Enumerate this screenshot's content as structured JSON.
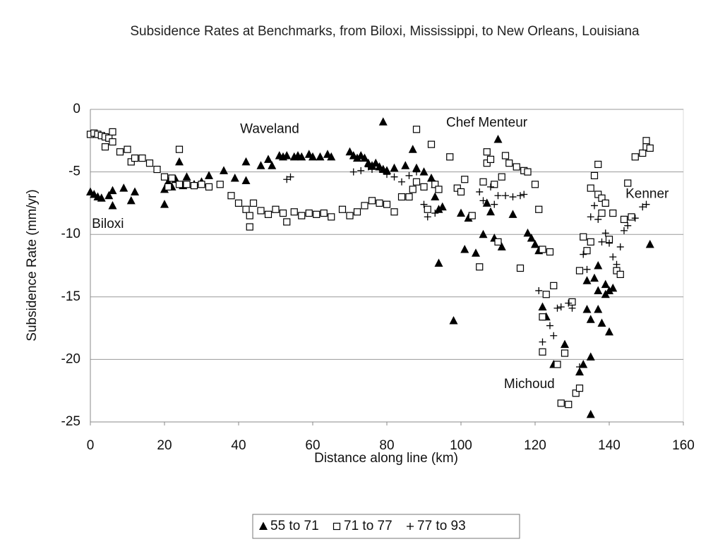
{
  "chart_data": {
    "type": "scatter",
    "title": "Subsidence Rates at Benchmarks, from Biloxi, Mississippi, to New Orleans, Louisiana",
    "x_label": "Distance along line (km)",
    "y_label": "Subsidence Rate (mm/yr)",
    "xlim": [
      0,
      160
    ],
    "ylim": [
      -25,
      0
    ],
    "xticks": [
      0,
      20,
      40,
      60,
      80,
      100,
      120,
      140,
      160
    ],
    "yticks": [
      0,
      -5,
      -10,
      -15,
      -20,
      -25
    ],
    "grid": true,
    "legend": "bottom",
    "annotations": [
      {
        "text": "Waveland",
        "x": 40.4,
        "y": -1.6
      },
      {
        "text": "Chef Menteur",
        "x": 96,
        "y": -1.1
      },
      {
        "text": "Kenner",
        "x": 144.4,
        "y": -6.8
      },
      {
        "text": "Biloxi",
        "x": 0.4,
        "y": -9.2
      },
      {
        "text": "Michoud",
        "x": 111.6,
        "y": -22
      }
    ],
    "series": [
      {
        "name": "55 to 71",
        "color": "#000000",
        "marker": "triangle",
        "x": [
          0,
          1,
          2,
          3,
          5,
          6,
          6,
          9,
          11,
          12,
          20,
          20,
          21,
          22,
          23,
          24,
          25,
          26,
          28,
          30,
          32,
          36,
          39,
          42,
          42,
          46,
          48,
          49,
          51,
          52,
          53,
          55,
          56,
          57,
          59,
          60,
          62,
          64,
          65,
          70,
          71,
          72,
          73,
          74,
          75,
          76,
          77,
          78,
          79,
          79,
          80,
          82,
          85,
          87,
          88,
          90,
          92,
          93,
          93,
          94,
          94,
          95,
          98,
          100,
          101,
          102,
          104,
          106,
          107,
          108,
          109,
          110,
          111,
          114,
          118,
          119,
          120,
          121,
          122,
          123,
          125,
          128,
          132,
          133,
          134,
          134,
          135,
          135,
          135,
          136,
          137,
          137,
          137,
          138,
          139,
          139,
          140,
          140,
          141,
          151
        ],
        "values": [
          -6.6,
          -6.8,
          -7,
          -7.1,
          -6.9,
          -6.5,
          -7.7,
          -6.3,
          -7.3,
          -6.6,
          -6.4,
          -7.6,
          -5.8,
          -6.2,
          -5.6,
          -4.2,
          -6.1,
          -5.4,
          -6,
          -5.8,
          -5.3,
          -4.9,
          -5.5,
          -4.2,
          -5.7,
          -4.5,
          -4,
          -4.5,
          -3.7,
          -3.8,
          -3.7,
          -3.8,
          -3.7,
          -3.8,
          -3.6,
          -3.8,
          -3.8,
          -3.6,
          -3.8,
          -3.4,
          -3.7,
          -3.9,
          -3.7,
          -3.9,
          -4.3,
          -4.5,
          -4.3,
          -4.6,
          -1,
          -4.8,
          -4.9,
          -4.7,
          -4.5,
          -3.2,
          -4.7,
          -5,
          -5.5,
          -6,
          -7,
          -8,
          -12.3,
          -7.8,
          -16.9,
          -8.3,
          -11.2,
          -8.7,
          -11.5,
          -10,
          -7.5,
          -8.2,
          -10.3,
          -2.4,
          -11,
          -8.4,
          -9.9,
          -10.3,
          -10.8,
          -11.3,
          -15.8,
          -16.6,
          -20.4,
          -18.8,
          -21,
          -20.4,
          -13.7,
          -16,
          -24.4,
          -19.8,
          -16.8,
          -13.5,
          -16,
          -12.5,
          -14.5,
          -17.1,
          -14.8,
          -14,
          -14.5,
          -17.8,
          -14.3,
          -10.8
        ]
      },
      {
        "name": "71 to 77",
        "color": "#000000",
        "marker": "square",
        "x": [
          0,
          1,
          2,
          3,
          4,
          4,
          5,
          6,
          6,
          8,
          10,
          11,
          12,
          14,
          16,
          18,
          20,
          21,
          22,
          24,
          24,
          26,
          28,
          30,
          32,
          35,
          38,
          40,
          42,
          43,
          43,
          44,
          46,
          48,
          50,
          52,
          53,
          55,
          57,
          59,
          61,
          63,
          65,
          68,
          70,
          72,
          74,
          76,
          78,
          80,
          82,
          84,
          86,
          87,
          88,
          88,
          90,
          91,
          92,
          93,
          94,
          97,
          99,
          100,
          101,
          103,
          105,
          106,
          107,
          107,
          108,
          109,
          110,
          111,
          112,
          113,
          115,
          116,
          117,
          118,
          120,
          121,
          122,
          122,
          122,
          123,
          124,
          125,
          126,
          127,
          128,
          129,
          130,
          131,
          132,
          132,
          133,
          134,
          135,
          135,
          136,
          137,
          137,
          138,
          138,
          139,
          140,
          141,
          142,
          143,
          144,
          145,
          146,
          147,
          149,
          150,
          150,
          151
        ],
        "values": [
          -2,
          -1.9,
          -2,
          -2.1,
          -2.2,
          -3,
          -2.3,
          -1.8,
          -2.6,
          -3.4,
          -3.2,
          -4.2,
          -3.9,
          -3.9,
          -4.3,
          -4.8,
          -5.4,
          -6.2,
          -5.5,
          -3.2,
          -6,
          -6,
          -6.1,
          -6,
          -6.2,
          -6,
          -6.9,
          -7.5,
          -8,
          -8.5,
          -9.4,
          -7.5,
          -8.1,
          -8.4,
          -8,
          -8.3,
          -9,
          -8.2,
          -8.5,
          -8.3,
          -8.4,
          -8.3,
          -8.6,
          -8,
          -8.5,
          -8.2,
          -7.7,
          -7.3,
          -7.5,
          -7.6,
          -8.2,
          -7,
          -7,
          -6.4,
          -1.6,
          -5.8,
          -6.2,
          -8,
          -2.8,
          -6,
          -6.4,
          -3.8,
          -6.3,
          -6.6,
          -5.6,
          -8.5,
          -12.6,
          -5.8,
          -3.4,
          -4.3,
          -4,
          -6,
          -10.6,
          -5.4,
          -3.7,
          -4.3,
          -4.6,
          -12.7,
          -4.9,
          -5,
          -6,
          -8,
          -11.2,
          -16.6,
          -19.4,
          -14.8,
          -11.4,
          -14.1,
          -20.4,
          -23.5,
          -19.5,
          -23.6,
          -15.4,
          -22.7,
          -22.3,
          -12.9,
          -10.2,
          -11.3,
          -6.3,
          -10.6,
          -5.3,
          -4.4,
          -6.8,
          -7.1,
          -8.3,
          -7.5,
          -10.4,
          -8.3,
          -12.9,
          -13.2,
          -8.8,
          -5.9,
          -8.6,
          -3.8,
          -3.5,
          -2.5,
          -3,
          -3.1
        ]
      },
      {
        "name": "77 to 93",
        "color": "#000000",
        "marker": "plus",
        "x": [
          53,
          54,
          71,
          73,
          75,
          76,
          78,
          80,
          82,
          84,
          86,
          88,
          90,
          91,
          93,
          105,
          106,
          108,
          109,
          110,
          112,
          114,
          116,
          117,
          121,
          122,
          124,
          125,
          126,
          127,
          129,
          130,
          132,
          133,
          134,
          135,
          136,
          137,
          138,
          139,
          140,
          141,
          142,
          143,
          144,
          145,
          147,
          149,
          150
        ],
        "values": [
          -5.6,
          -5.4,
          -5,
          -4.9,
          -4.6,
          -4.8,
          -4.7,
          -5.2,
          -5.4,
          -5.8,
          -5.3,
          -5,
          -7.6,
          -8.6,
          -8.3,
          -6.6,
          -7.3,
          -6.2,
          -7.6,
          -6.9,
          -6.9,
          -7,
          -6.9,
          -6.8,
          -14.5,
          -18.6,
          -17.3,
          -18.1,
          -15.9,
          -15.8,
          -15.5,
          -15.9,
          -20.6,
          -11.6,
          -12.8,
          -8.6,
          -7.7,
          -8.8,
          -10.6,
          -9.9,
          -10.7,
          -11.8,
          -12.4,
          -11,
          -9.7,
          -9.3,
          -8.7,
          -7.8,
          -7.6
        ]
      }
    ]
  }
}
